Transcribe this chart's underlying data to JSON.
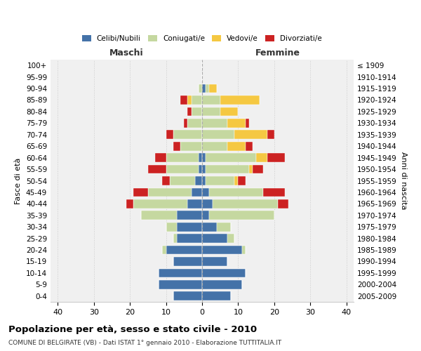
{
  "age_groups": [
    "0-4",
    "5-9",
    "10-14",
    "15-19",
    "20-24",
    "25-29",
    "30-34",
    "35-39",
    "40-44",
    "45-49",
    "50-54",
    "55-59",
    "60-64",
    "65-69",
    "70-74",
    "75-79",
    "80-84",
    "85-89",
    "90-94",
    "95-99",
    "100+"
  ],
  "birth_years": [
    "2005-2009",
    "2000-2004",
    "1995-1999",
    "1990-1994",
    "1985-1989",
    "1980-1984",
    "1975-1979",
    "1970-1974",
    "1965-1969",
    "1960-1964",
    "1955-1959",
    "1950-1954",
    "1945-1949",
    "1940-1944",
    "1935-1939",
    "1930-1934",
    "1925-1929",
    "1920-1924",
    "1915-1919",
    "1910-1914",
    "≤ 1909"
  ],
  "male": {
    "celibi": [
      8,
      12,
      12,
      8,
      10,
      7,
      7,
      7,
      4,
      3,
      2,
      1,
      1,
      0,
      0,
      0,
      0,
      0,
      0,
      0,
      0
    ],
    "coniugati": [
      0,
      0,
      0,
      0,
      1,
      1,
      3,
      10,
      15,
      12,
      7,
      9,
      9,
      6,
      8,
      4,
      3,
      3,
      1,
      0,
      0
    ],
    "vedovi": [
      0,
      0,
      0,
      0,
      0,
      0,
      0,
      0,
      0,
      0,
      0,
      0,
      0,
      0,
      0,
      0,
      0,
      1,
      0,
      0,
      0
    ],
    "divorziati": [
      0,
      0,
      0,
      0,
      0,
      0,
      0,
      0,
      2,
      4,
      2,
      5,
      3,
      2,
      2,
      1,
      1,
      2,
      0,
      0,
      0
    ]
  },
  "female": {
    "nubili": [
      8,
      11,
      12,
      7,
      11,
      7,
      4,
      2,
      3,
      2,
      1,
      1,
      1,
      0,
      0,
      0,
      0,
      0,
      1,
      0,
      0
    ],
    "coniugate": [
      0,
      0,
      0,
      0,
      1,
      2,
      4,
      18,
      18,
      15,
      8,
      12,
      14,
      7,
      9,
      7,
      5,
      5,
      1,
      0,
      0
    ],
    "vedove": [
      0,
      0,
      0,
      0,
      0,
      0,
      0,
      0,
      0,
      0,
      1,
      1,
      3,
      5,
      9,
      5,
      5,
      11,
      2,
      0,
      0
    ],
    "divorziate": [
      0,
      0,
      0,
      0,
      0,
      0,
      0,
      0,
      3,
      6,
      2,
      3,
      5,
      2,
      2,
      1,
      0,
      0,
      0,
      0,
      0
    ]
  },
  "color_celibi": "#4472a8",
  "color_coniugati": "#c5d8a0",
  "color_vedovi": "#f5c842",
  "color_divorziati": "#cc2222",
  "xlim": 42,
  "title": "Popolazione per età, sesso e stato civile - 2010",
  "subtitle": "COMUNE DI BELGIRATE (VB) - Dati ISTAT 1° gennaio 2010 - Elaborazione TUTTITALIA.IT",
  "ylabel_left": "Fasce di età",
  "ylabel_right": "Anni di nascita",
  "xlabel_maschi": "Maschi",
  "xlabel_femmine": "Femmine"
}
